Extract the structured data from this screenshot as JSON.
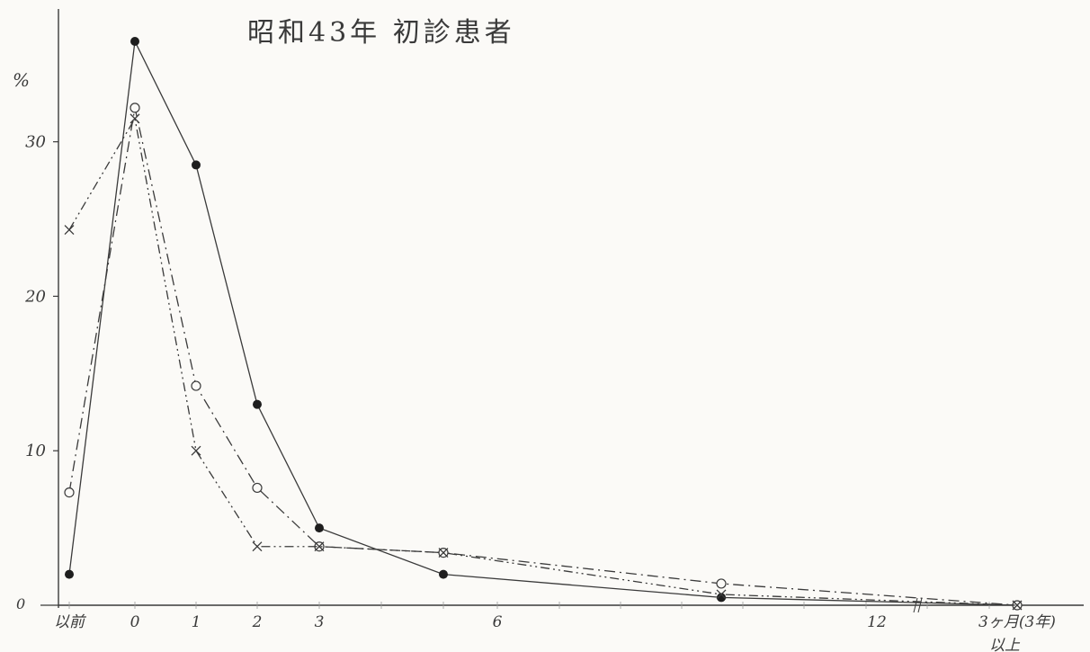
{
  "chart_data": {
    "type": "line",
    "title": "昭和43年 初診患者",
    "ylabel": "%",
    "yticks": [
      "10",
      "20",
      "30"
    ],
    "ylim": [
      0,
      36.5
    ],
    "categories": [
      "以前",
      "0",
      "1",
      "2",
      "3",
      "6",
      "12",
      "3ヶ月(3年)以上"
    ],
    "tick_labels": [
      {
        "x": -1,
        "label": "以前"
      },
      {
        "x": 0,
        "label": "0"
      },
      {
        "x": 1,
        "label": "1"
      },
      {
        "x": 2,
        "label": "2"
      },
      {
        "x": 3,
        "label": "3"
      },
      {
        "x": 6,
        "label": "6"
      },
      {
        "x": 12,
        "label": "12"
      },
      {
        "x": 14,
        "label": "3ヶ月(3年)"
      }
    ],
    "extra_label": "以上",
    "series": [
      {
        "marker": "filled-circle",
        "line": "solid",
        "points": [
          {
            "x": -1,
            "y": 2.0
          },
          {
            "x": 0,
            "y": 36.5
          },
          {
            "x": 1,
            "y": 28.5
          },
          {
            "x": 2,
            "y": 13.0
          },
          {
            "x": 3,
            "y": 5.0
          },
          {
            "x": 5,
            "y": 2.0
          },
          {
            "x": 9.5,
            "y": 0.5
          },
          {
            "x": 14,
            "y": 0.0
          }
        ]
      },
      {
        "marker": "open-circle",
        "line": "dash-dot",
        "points": [
          {
            "x": -1,
            "y": 7.3
          },
          {
            "x": 0,
            "y": 32.2
          },
          {
            "x": 1,
            "y": 14.2
          },
          {
            "x": 2,
            "y": 7.6
          },
          {
            "x": 3,
            "y": 3.8
          },
          {
            "x": 5,
            "y": 3.4
          },
          {
            "x": 9.5,
            "y": 1.4
          },
          {
            "x": 14,
            "y": 0.0
          }
        ]
      },
      {
        "marker": "cross",
        "line": "dash-dot-dot",
        "points": [
          {
            "x": -1,
            "y": 24.3
          },
          {
            "x": 0,
            "y": 31.5
          },
          {
            "x": 1,
            "y": 10.0
          },
          {
            "x": 2,
            "y": 3.8
          },
          {
            "x": 3,
            "y": 3.8
          },
          {
            "x": 5,
            "y": 3.4
          },
          {
            "x": 9.5,
            "y": 0.7
          },
          {
            "x": 14,
            "y": 0.0
          }
        ]
      }
    ],
    "grid": false,
    "line_color": "#3a3a3a",
    "background": "#fbfaf7"
  }
}
